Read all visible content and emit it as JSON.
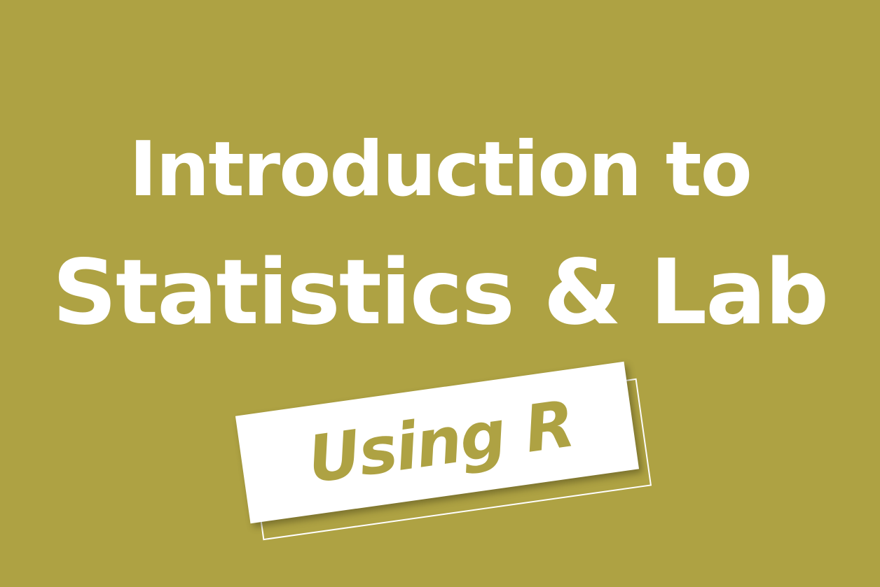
{
  "colors": {
    "background": "#aea243",
    "text": "#ffffff",
    "tag_text": "#aea243"
  },
  "title": {
    "line1": "Introduction to",
    "line2": "Statistics & Lab"
  },
  "tag": {
    "label": "Using R"
  }
}
